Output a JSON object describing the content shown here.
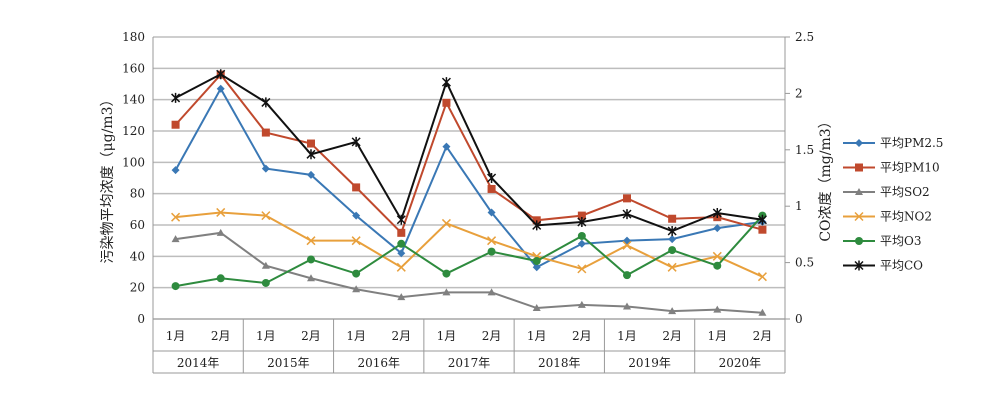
{
  "chart_data": {
    "type": "line",
    "ylabel": "污染物平均浓度（μg/m3）",
    "y2label": "CO浓度（mg/m3）",
    "ylim": [
      0,
      180
    ],
    "yticks": [
      0,
      20,
      40,
      60,
      80,
      100,
      120,
      140,
      160,
      180
    ],
    "y2lim": [
      0,
      2.5
    ],
    "y2ticks": [
      "0",
      "0.5",
      "1",
      "1.5",
      "2",
      "2.5"
    ],
    "months": [
      "1月",
      "2月",
      "1月",
      "2月",
      "1月",
      "2月",
      "1月",
      "2月",
      "1月",
      "2月",
      "1月",
      "2月",
      "1月",
      "2月"
    ],
    "years": [
      "2014年",
      "2015年",
      "2016年",
      "2017年",
      "2018年",
      "2019年",
      "2020年"
    ],
    "grid": true,
    "legend": "right",
    "series": [
      {
        "name": "平均PM2.5",
        "color": "#3a78b5",
        "marker": "diamond",
        "axis": "left",
        "values": [
          95,
          147,
          96,
          92,
          66,
          42,
          110,
          68,
          33,
          48,
          50,
          51,
          58,
          62
        ]
      },
      {
        "name": "平均PM10",
        "color": "#c0492d",
        "marker": "square",
        "axis": "left",
        "values": [
          124,
          156,
          119,
          112,
          84,
          55,
          138,
          83,
          63,
          66,
          77,
          64,
          65,
          57
        ]
      },
      {
        "name": "平均SO2",
        "color": "#808080",
        "marker": "triangle",
        "axis": "left",
        "values": [
          51,
          55,
          34,
          26,
          19,
          14,
          17,
          17,
          7,
          9,
          8,
          5,
          6,
          4
        ]
      },
      {
        "name": "平均NO2",
        "color": "#e8a03c",
        "marker": "x",
        "axis": "left",
        "values": [
          65,
          68,
          66,
          50,
          50,
          33,
          61,
          50,
          40,
          32,
          47,
          33,
          40,
          27
        ]
      },
      {
        "name": "平均O3",
        "color": "#2e8b3e",
        "marker": "circle",
        "axis": "left",
        "values": [
          21,
          26,
          23,
          38,
          29,
          48,
          29,
          43,
          37,
          53,
          28,
          44,
          34,
          66
        ]
      },
      {
        "name": "平均CO",
        "color": "#111111",
        "marker": "star",
        "axis": "right",
        "values": [
          1.96,
          2.17,
          1.92,
          1.46,
          1.57,
          0.88,
          2.1,
          1.25,
          0.83,
          0.86,
          0.93,
          0.78,
          0.94,
          0.88
        ]
      }
    ]
  }
}
